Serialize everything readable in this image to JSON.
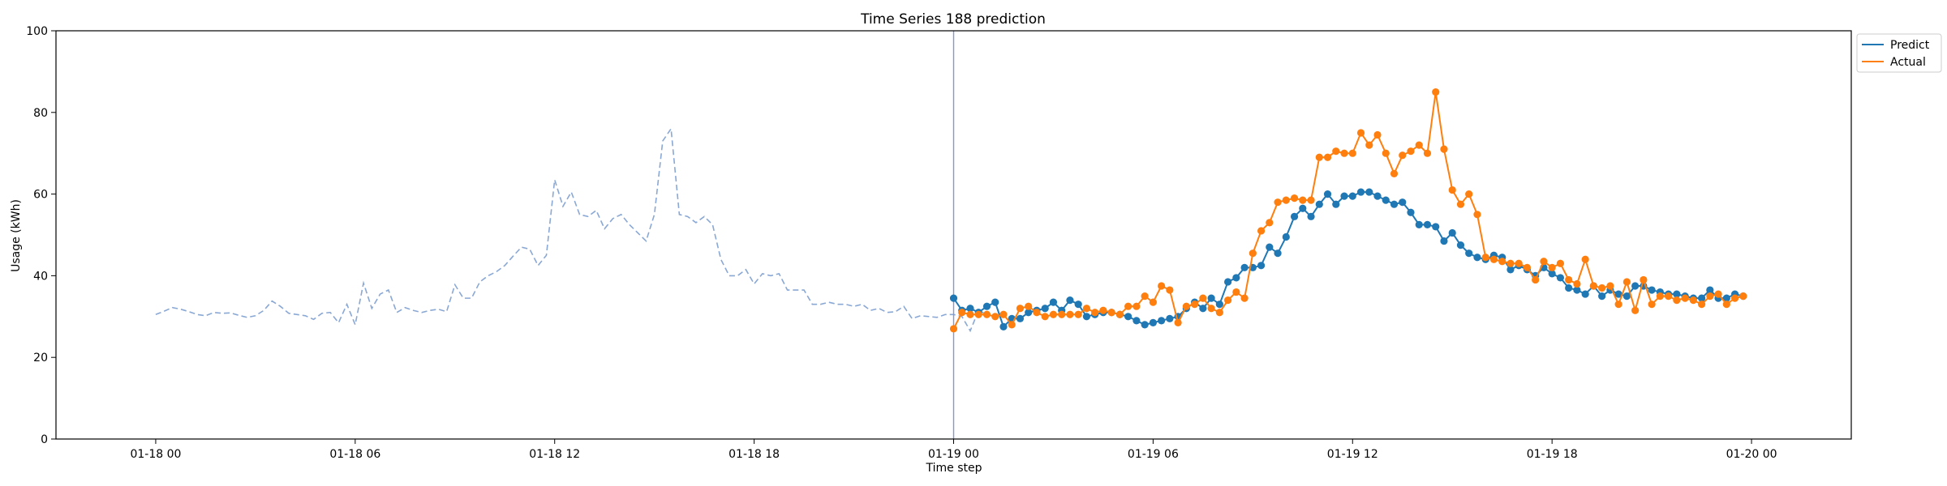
{
  "chart_data": {
    "type": "line",
    "title": "Time Series 188 prediction",
    "xlabel": "Time step",
    "ylabel": "Usage (kWh)",
    "ylim": [
      0,
      100
    ],
    "yticks": [
      0,
      20,
      40,
      60,
      80,
      100
    ],
    "x_unit": "hour offset from 01-18 00:00",
    "xlim": [
      -3,
      51
    ],
    "xticks": [
      {
        "x": 0,
        "label": "01-18 00"
      },
      {
        "x": 6,
        "label": "01-18 06"
      },
      {
        "x": 12,
        "label": "01-18 12"
      },
      {
        "x": 18,
        "label": "01-18 18"
      },
      {
        "x": 24,
        "label": "01-19 00"
      },
      {
        "x": 30,
        "label": "01-19 06"
      },
      {
        "x": 36,
        "label": "01-19 12"
      },
      {
        "x": 42,
        "label": "01-19 18"
      },
      {
        "x": 48,
        "label": "01-20 00"
      }
    ],
    "split_x": 24,
    "legend_position": "upper right (outside)",
    "history": {
      "color": "#8aa8d4",
      "style": "dashed",
      "step": 0.25,
      "start": 0,
      "values": [
        30.5,
        31.3,
        32.2,
        31.8,
        31.2,
        30.5,
        30.2,
        31.0,
        30.8,
        30.9,
        30.3,
        29.8,
        30.2,
        31.5,
        33.8,
        32.5,
        30.8,
        30.5,
        30.2,
        29.3,
        30.8,
        31.0,
        28.5,
        33.0,
        28.0,
        38.2,
        32.0,
        35.5,
        36.5,
        31.0,
        32.2,
        31.5,
        31.0,
        31.5,
        31.8,
        31.2,
        37.8,
        34.5,
        34.5,
        38.5,
        40.0,
        41.0,
        42.5,
        44.8,
        47.0,
        46.5,
        42.5,
        45.0,
        63.5,
        57.0,
        60.5,
        55.0,
        54.5,
        56.0,
        51.5,
        54.0,
        55.0,
        52.5,
        50.5,
        48.5,
        55.0,
        73.0,
        76.0,
        55.0,
        54.5,
        53.0,
        54.5,
        52.5,
        44.0,
        40.0,
        40.0,
        41.5,
        38.0,
        40.5,
        40.0,
        40.5,
        36.5,
        36.5,
        36.5,
        33.0,
        33.0,
        33.5,
        33.0,
        33.0,
        32.5,
        33.0,
        31.5,
        32.0,
        31.0,
        31.2,
        32.5,
        29.5,
        30.2,
        30.0,
        29.8,
        30.5,
        30.5,
        30.0,
        26.5,
        31.5,
        30.5
      ]
    },
    "series": [
      {
        "name": "Predict",
        "color": "#1f77b4",
        "step": 0.25,
        "start": 24,
        "values": [
          34.5,
          31.5,
          32.0,
          31.0,
          32.5,
          33.5,
          27.5,
          29.5,
          29.5,
          31.0,
          31.5,
          32.0,
          33.5,
          31.5,
          34.0,
          33.0,
          30.0,
          30.5,
          31.0,
          31.0,
          30.5,
          30.0,
          29.0,
          28.0,
          28.5,
          29.0,
          29.5,
          30.0,
          32.0,
          33.5,
          32.0,
          34.5,
          33.0,
          38.5,
          39.5,
          42.0,
          42.0,
          42.5,
          47.0,
          45.5,
          49.5,
          54.5,
          56.5,
          54.5,
          57.5,
          60.0,
          57.5,
          59.5,
          59.5,
          60.5,
          60.5,
          59.5,
          58.5,
          57.5,
          58.0,
          55.5,
          52.5,
          52.5,
          52.0,
          48.5,
          50.5,
          47.5,
          45.5,
          44.5,
          44.0,
          45.0,
          44.5,
          41.5,
          42.5,
          41.5,
          40.0,
          42.0,
          40.5,
          39.5,
          37.0,
          36.5,
          35.5,
          37.5,
          35.0,
          36.5,
          35.5,
          35.0,
          37.5,
          37.5,
          36.5,
          36.0,
          35.5,
          35.5,
          35.0,
          34.5,
          34.5,
          36.5,
          34.5,
          34.5,
          35.5,
          35.0
        ]
      },
      {
        "name": "Actual",
        "color": "#ff7f0e",
        "step": 0.25,
        "start": 24,
        "values": [
          27.0,
          31.0,
          30.5,
          30.5,
          30.5,
          30.0,
          30.5,
          28.0,
          32.0,
          32.5,
          31.0,
          30.0,
          30.5,
          30.5,
          30.5,
          30.5,
          32.0,
          31.0,
          31.5,
          31.0,
          30.5,
          32.5,
          32.5,
          35.0,
          33.5,
          37.5,
          36.5,
          28.5,
          32.5,
          33.0,
          34.5,
          32.0,
          31.0,
          34.0,
          36.0,
          34.5,
          45.5,
          51.0,
          53.0,
          58.0,
          58.5,
          59.0,
          58.5,
          58.5,
          69.0,
          69.0,
          70.5,
          70.0,
          70.0,
          75.0,
          72.0,
          74.5,
          70.0,
          65.0,
          69.5,
          70.5,
          72.0,
          70.0,
          85.0,
          71.0,
          61.0,
          57.5,
          60.0,
          55.0,
          44.5,
          44.0,
          43.5,
          43.0,
          43.0,
          42.0,
          39.0,
          43.5,
          42.0,
          43.0,
          39.0,
          38.0,
          44.0,
          37.5,
          37.0,
          37.5,
          33.0,
          38.5,
          31.5,
          39.0,
          33.0,
          35.0,
          35.0,
          34.0,
          34.5,
          34.0,
          33.0,
          35.0,
          35.5,
          33.0,
          34.5,
          35.0
        ]
      }
    ]
  }
}
